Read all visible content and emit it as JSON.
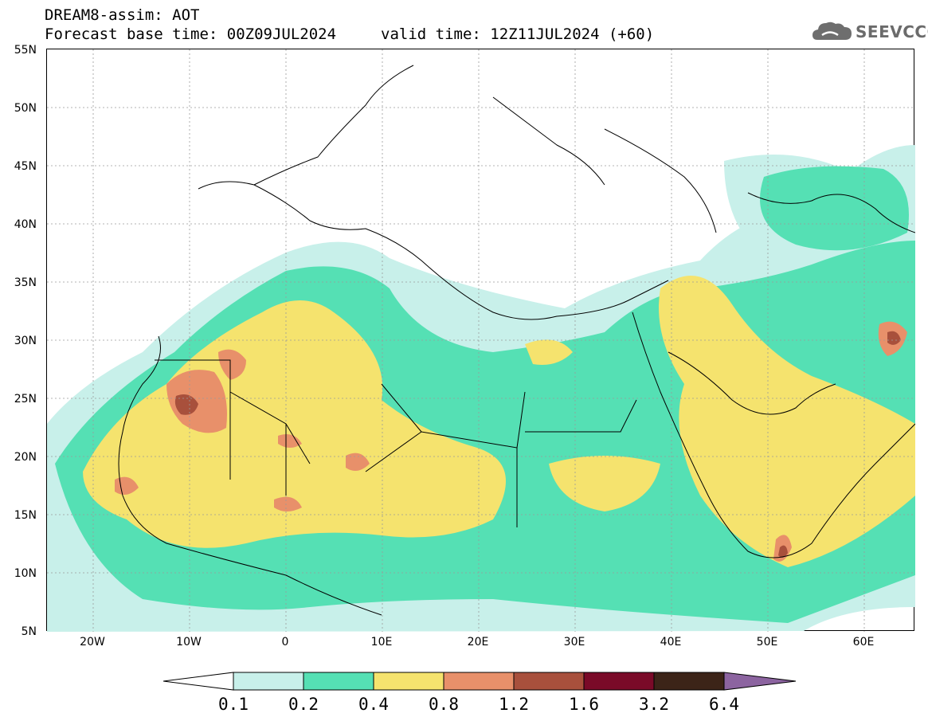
{
  "header": {
    "title": "DREAM8-assim: AOT",
    "base_time": "Forecast base time: 00Z09JUL2024",
    "valid_time": "valid time: 12Z11JUL2024 (+60)"
  },
  "logo": {
    "text": "SEEVCCC",
    "icon": "cloud-icon"
  },
  "map": {
    "lat_labels": [
      "55N",
      "50N",
      "45N",
      "40N",
      "35N",
      "30N",
      "25N",
      "20N",
      "15N",
      "10N",
      "5N"
    ],
    "lon_labels": [
      "20W",
      "10W",
      "0",
      "10E",
      "20E",
      "30E",
      "40E",
      "50E",
      "60E"
    ],
    "lat_range": [
      5,
      55
    ],
    "lon_range": [
      -25,
      65
    ]
  },
  "legend": {
    "levels": [
      "0.1",
      "0.2",
      "0.4",
      "0.8",
      "1.2",
      "1.6",
      "3.2",
      "6.4"
    ],
    "colors": [
      "#ffffff",
      "#c8f0ea",
      "#55e0b4",
      "#f5e36e",
      "#e8906a",
      "#a8503c",
      "#7a0a28",
      "#3c2418",
      "#8c64a0"
    ]
  }
}
